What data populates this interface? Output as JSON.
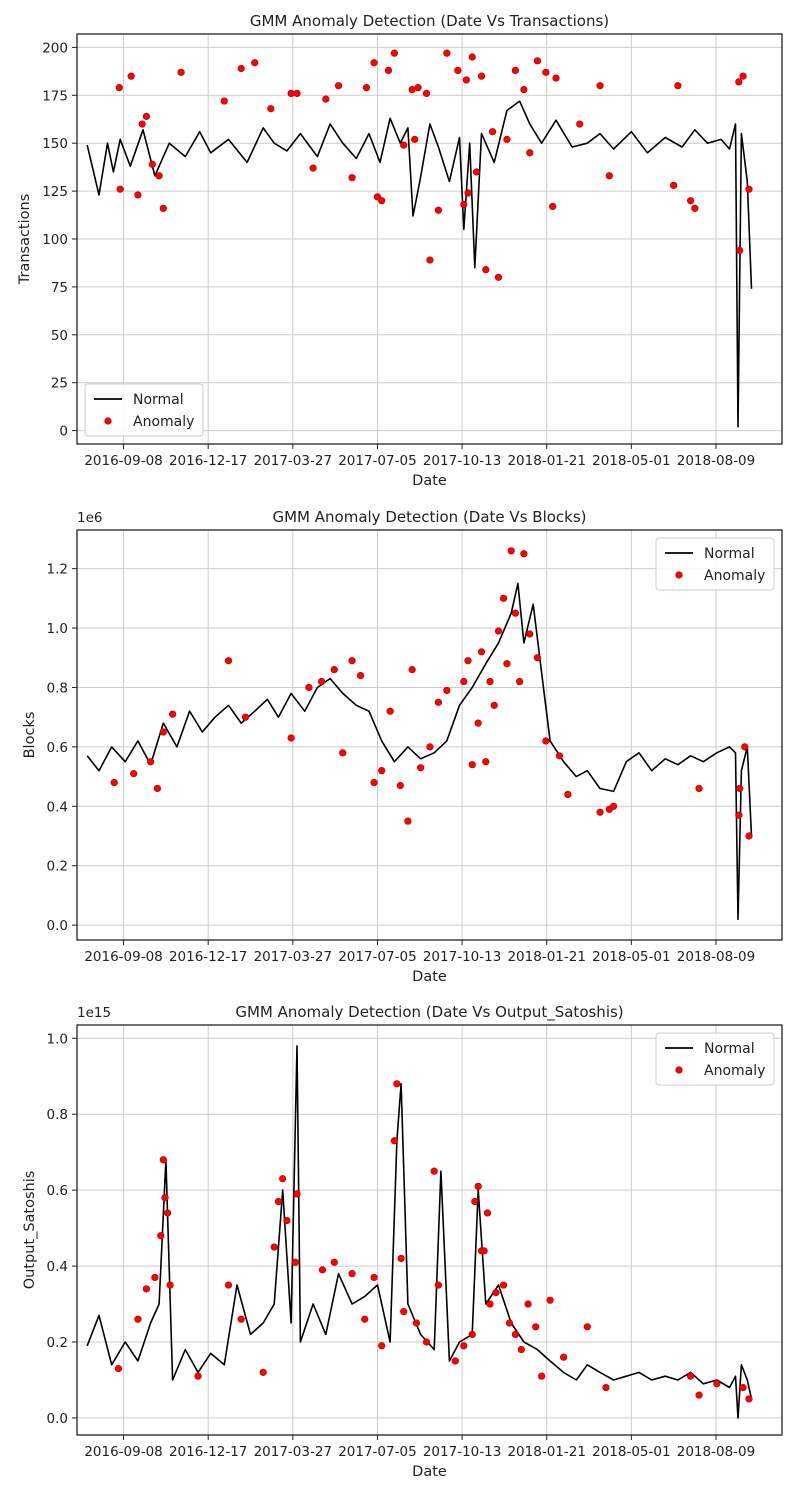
{
  "chart_data": [
    {
      "type": "line",
      "title": "GMM Anomaly Detection (Date Vs Transactions)",
      "xlabel": "Date",
      "ylabel": "Transactions",
      "offset_label": "",
      "x_ticks": [
        "2016-09-08",
        "2016-12-17",
        "2017-03-27",
        "2017-07-05",
        "2017-10-13",
        "2018-01-21",
        "2018-05-01",
        "2018-08-09"
      ],
      "y_ticks": [
        "0",
        "25",
        "50",
        "75",
        "100",
        "125",
        "150",
        "175",
        "200"
      ],
      "y_tick_values": [
        0,
        25,
        50,
        75,
        100,
        125,
        150,
        175,
        200
      ],
      "xlim": [
        "2016-07-15",
        "2018-10-26"
      ],
      "ylim": [
        -7,
        207
      ],
      "grid": true,
      "legend_position": "lower-left",
      "legend": {
        "normal": "Normal",
        "anomaly": "Anomaly"
      },
      "series": [
        {
          "name": "Normal",
          "style": "line",
          "color": "#000000",
          "x": [
            "2016-07-27",
            "2016-08-10",
            "2016-08-20",
            "2016-08-27",
            "2016-09-04",
            "2016-09-16",
            "2016-10-01",
            "2016-10-15",
            "2016-11-01",
            "2016-11-20",
            "2016-12-07",
            "2016-12-20",
            "2017-01-10",
            "2017-02-01",
            "2017-02-20",
            "2017-03-05",
            "2017-03-20",
            "2017-04-05",
            "2017-04-25",
            "2017-05-10",
            "2017-05-25",
            "2017-06-10",
            "2017-06-25",
            "2017-07-08",
            "2017-07-20",
            "2017-08-01",
            "2017-08-10",
            "2017-08-16",
            "2017-08-24",
            "2017-09-05",
            "2017-09-15",
            "2017-09-28",
            "2017-10-10",
            "2017-10-15",
            "2017-10-22",
            "2017-10-28",
            "2017-11-05",
            "2017-11-20",
            "2017-12-05",
            "2017-12-20",
            "2018-01-01",
            "2018-01-15",
            "2018-02-01",
            "2018-02-20",
            "2018-03-10",
            "2018-03-25",
            "2018-04-10",
            "2018-05-01",
            "2018-05-20",
            "2018-06-10",
            "2018-06-30",
            "2018-07-15",
            "2018-07-30",
            "2018-08-15",
            "2018-08-25",
            "2018-09-01",
            "2018-09-04",
            "2018-09-08",
            "2018-09-15",
            "2018-09-20"
          ],
          "values": [
            149,
            123,
            150,
            135,
            152,
            138,
            157,
            133,
            150,
            143,
            156,
            145,
            152,
            140,
            158,
            150,
            146,
            155,
            143,
            160,
            150,
            142,
            155,
            140,
            163,
            150,
            158,
            112,
            130,
            160,
            148,
            130,
            153,
            105,
            150,
            85,
            155,
            140,
            167,
            172,
            160,
            150,
            162,
            148,
            150,
            155,
            147,
            156,
            145,
            153,
            148,
            157,
            150,
            152,
            147,
            160,
            2,
            155,
            130,
            74
          ]
        },
        {
          "name": "Anomaly",
          "style": "scatter",
          "color": "#ff0000",
          "x": [
            "2016-09-03",
            "2016-09-04",
            "2016-09-17",
            "2016-09-25",
            "2016-09-30",
            "2016-10-05",
            "2016-10-12",
            "2016-10-20",
            "2016-10-25",
            "2016-11-15",
            "2017-01-05",
            "2017-01-25",
            "2017-02-10",
            "2017-03-01",
            "2017-03-25",
            "2017-04-01",
            "2017-04-20",
            "2017-05-05",
            "2017-05-20",
            "2017-06-05",
            "2017-06-22",
            "2017-07-01",
            "2017-07-05",
            "2017-07-10",
            "2017-07-18",
            "2017-07-25",
            "2017-08-05",
            "2017-08-15",
            "2017-08-18",
            "2017-08-22",
            "2017-09-01",
            "2017-09-05",
            "2017-09-15",
            "2017-09-25",
            "2017-10-08",
            "2017-10-15",
            "2017-10-18",
            "2017-10-20",
            "2017-10-25",
            "2017-10-30",
            "2017-11-05",
            "2017-11-10",
            "2017-11-18",
            "2017-11-25",
            "2017-12-05",
            "2017-12-15",
            "2017-12-25",
            "2018-01-01",
            "2018-01-10",
            "2018-01-20",
            "2018-01-28",
            "2018-02-01",
            "2018-03-01",
            "2018-03-25",
            "2018-04-05",
            "2018-06-20",
            "2018-06-25",
            "2018-07-10",
            "2018-07-15",
            "2018-09-05",
            "2018-09-06",
            "2018-09-10",
            "2018-09-17"
          ],
          "values": [
            179,
            126,
            185,
            123,
            160,
            164,
            139,
            133,
            116,
            187,
            172,
            189,
            192,
            168,
            176,
            176,
            137,
            173,
            180,
            132,
            179,
            192,
            122,
            120,
            188,
            197,
            149,
            178,
            152,
            179,
            176,
            89,
            115,
            197,
            188,
            118,
            183,
            124,
            195,
            135,
            185,
            84,
            156,
            80,
            152,
            188,
            178,
            145,
            193,
            187,
            117,
            184,
            160,
            180,
            133,
            128,
            180,
            120,
            116,
            182,
            94,
            185,
            126
          ]
        }
      ]
    },
    {
      "type": "line",
      "title": "GMM Anomaly Detection (Date Vs Blocks)",
      "xlabel": "Date",
      "ylabel": "Blocks",
      "offset_label": "1e6",
      "x_ticks": [
        "2016-09-08",
        "2016-12-17",
        "2017-03-27",
        "2017-07-05",
        "2017-10-13",
        "2018-01-21",
        "2018-05-01",
        "2018-08-09"
      ],
      "y_ticks": [
        "0.0",
        "0.2",
        "0.4",
        "0.6",
        "0.8",
        "1.0",
        "1.2"
      ],
      "y_tick_values": [
        0.0,
        0.2,
        0.4,
        0.6,
        0.8,
        1.0,
        1.2
      ],
      "xlim": [
        "2016-07-15",
        "2018-10-26"
      ],
      "ylim": [
        -0.05,
        1.33
      ],
      "grid": true,
      "legend_position": "top-right",
      "legend": {
        "normal": "Normal",
        "anomaly": "Anomaly"
      },
      "series": [
        {
          "name": "Normal",
          "style": "line",
          "color": "#000000",
          "x": [
            "2016-07-27",
            "2016-08-10",
            "2016-08-25",
            "2016-09-10",
            "2016-09-25",
            "2016-10-10",
            "2016-10-25",
            "2016-11-10",
            "2016-11-25",
            "2016-12-10",
            "2016-12-25",
            "2017-01-10",
            "2017-01-25",
            "2017-02-10",
            "2017-02-25",
            "2017-03-10",
            "2017-03-25",
            "2017-04-10",
            "2017-04-25",
            "2017-05-10",
            "2017-05-25",
            "2017-06-10",
            "2017-06-25",
            "2017-07-10",
            "2017-07-25",
            "2017-08-10",
            "2017-08-25",
            "2017-09-10",
            "2017-09-25",
            "2017-10-10",
            "2017-10-25",
            "2017-11-10",
            "2017-11-25",
            "2017-12-10",
            "2017-12-18",
            "2017-12-25",
            "2018-01-05",
            "2018-01-15",
            "2018-01-25",
            "2018-02-10",
            "2018-02-25",
            "2018-03-10",
            "2018-03-25",
            "2018-04-10",
            "2018-04-25",
            "2018-05-10",
            "2018-05-25",
            "2018-06-10",
            "2018-06-25",
            "2018-07-10",
            "2018-07-25",
            "2018-08-10",
            "2018-08-25",
            "2018-09-01",
            "2018-09-04",
            "2018-09-08",
            "2018-09-15",
            "2018-09-20"
          ],
          "values": [
            0.57,
            0.52,
            0.6,
            0.55,
            0.62,
            0.54,
            0.68,
            0.6,
            0.72,
            0.65,
            0.7,
            0.74,
            0.68,
            0.72,
            0.76,
            0.7,
            0.78,
            0.72,
            0.8,
            0.83,
            0.78,
            0.74,
            0.72,
            0.62,
            0.55,
            0.6,
            0.56,
            0.58,
            0.62,
            0.74,
            0.8,
            0.88,
            0.95,
            1.05,
            1.15,
            0.95,
            1.08,
            0.85,
            0.62,
            0.55,
            0.5,
            0.52,
            0.46,
            0.45,
            0.55,
            0.58,
            0.52,
            0.56,
            0.54,
            0.57,
            0.55,
            0.58,
            0.6,
            0.58,
            0.02,
            0.52,
            0.6,
            0.3
          ]
        },
        {
          "name": "Anomaly",
          "style": "scatter",
          "color": "#ff0000",
          "x": [
            "2016-08-28",
            "2016-09-20",
            "2016-10-10",
            "2016-10-18",
            "2016-10-25",
            "2016-11-05",
            "2017-01-10",
            "2017-01-30",
            "2017-03-25",
            "2017-04-15",
            "2017-04-30",
            "2017-05-15",
            "2017-05-25",
            "2017-06-05",
            "2017-06-15",
            "2017-07-01",
            "2017-07-10",
            "2017-07-20",
            "2017-08-01",
            "2017-08-10",
            "2017-08-15",
            "2017-08-25",
            "2017-09-05",
            "2017-09-15",
            "2017-09-25",
            "2017-10-15",
            "2017-10-20",
            "2017-10-25",
            "2017-11-01",
            "2017-11-05",
            "2017-11-10",
            "2017-11-15",
            "2017-11-20",
            "2017-11-25",
            "2017-12-01",
            "2017-12-05",
            "2017-12-10",
            "2017-12-15",
            "2017-12-20",
            "2017-12-25",
            "2018-01-01",
            "2018-01-10",
            "2018-01-20",
            "2018-02-05",
            "2018-02-15",
            "2018-03-25",
            "2018-04-05",
            "2018-04-10",
            "2018-07-20",
            "2018-09-05",
            "2018-09-06",
            "2018-09-12",
            "2018-09-17"
          ],
          "values": [
            0.48,
            0.51,
            0.55,
            0.46,
            0.65,
            0.71,
            0.89,
            0.7,
            0.63,
            0.8,
            0.82,
            0.86,
            0.58,
            0.89,
            0.84,
            0.48,
            0.52,
            0.72,
            0.47,
            0.35,
            0.86,
            0.53,
            0.6,
            0.75,
            0.79,
            0.82,
            0.89,
            0.54,
            0.68,
            0.92,
            0.55,
            0.82,
            0.74,
            0.99,
            1.1,
            0.88,
            1.26,
            1.05,
            0.82,
            1.25,
            0.98,
            0.9,
            0.62,
            0.57,
            0.44,
            0.38,
            0.39,
            0.4,
            0.46,
            0.37,
            0.46,
            0.6,
            0.3
          ]
        }
      ]
    },
    {
      "type": "line",
      "title": "GMM Anomaly Detection (Date Vs Output_Satoshis)",
      "xlabel": "Date",
      "ylabel": "Output_Satoshis",
      "offset_label": "1e15",
      "x_ticks": [
        "2016-09-08",
        "2016-12-17",
        "2017-03-27",
        "2017-07-05",
        "2017-10-13",
        "2018-01-21",
        "2018-05-01",
        "2018-08-09"
      ],
      "y_ticks": [
        "0.0",
        "0.2",
        "0.4",
        "0.6",
        "0.8",
        "1.0"
      ],
      "y_tick_values": [
        0.0,
        0.2,
        0.4,
        0.6,
        0.8,
        1.0
      ],
      "xlim": [
        "2016-07-15",
        "2018-10-26"
      ],
      "ylim": [
        -0.045,
        1.035
      ],
      "grid": true,
      "legend_position": "top-right",
      "legend": {
        "normal": "Normal",
        "anomaly": "Anomaly"
      },
      "series": [
        {
          "name": "Normal",
          "style": "line",
          "color": "#000000",
          "x": [
            "2016-07-27",
            "2016-08-10",
            "2016-08-25",
            "2016-09-10",
            "2016-09-25",
            "2016-10-10",
            "2016-10-20",
            "2016-10-28",
            "2016-11-05",
            "2016-11-20",
            "2016-12-05",
            "2016-12-20",
            "2017-01-05",
            "2017-01-20",
            "2017-02-05",
            "2017-02-20",
            "2017-03-05",
            "2017-03-15",
            "2017-03-25",
            "2017-04-01",
            "2017-04-05",
            "2017-04-20",
            "2017-05-05",
            "2017-05-20",
            "2017-06-05",
            "2017-06-20",
            "2017-07-05",
            "2017-07-20",
            "2017-07-28",
            "2017-08-02",
            "2017-08-10",
            "2017-08-25",
            "2017-09-10",
            "2017-09-18",
            "2017-09-28",
            "2017-10-10",
            "2017-10-25",
            "2017-11-01",
            "2017-11-10",
            "2017-11-25",
            "2017-12-10",
            "2017-12-25",
            "2018-01-10",
            "2018-01-25",
            "2018-02-10",
            "2018-02-25",
            "2018-03-10",
            "2018-03-25",
            "2018-04-10",
            "2018-04-25",
            "2018-05-10",
            "2018-05-25",
            "2018-06-10",
            "2018-06-25",
            "2018-07-10",
            "2018-07-25",
            "2018-08-10",
            "2018-08-25",
            "2018-09-01",
            "2018-09-04",
            "2018-09-08",
            "2018-09-15",
            "2018-09-20"
          ],
          "values": [
            0.19,
            0.27,
            0.14,
            0.2,
            0.15,
            0.25,
            0.3,
            0.68,
            0.1,
            0.18,
            0.12,
            0.17,
            0.14,
            0.35,
            0.22,
            0.25,
            0.3,
            0.6,
            0.25,
            0.98,
            0.2,
            0.3,
            0.22,
            0.38,
            0.3,
            0.32,
            0.35,
            0.2,
            0.73,
            0.88,
            0.3,
            0.22,
            0.18,
            0.65,
            0.15,
            0.2,
            0.22,
            0.6,
            0.3,
            0.35,
            0.25,
            0.2,
            0.18,
            0.15,
            0.12,
            0.1,
            0.14,
            0.12,
            0.1,
            0.11,
            0.12,
            0.1,
            0.11,
            0.1,
            0.12,
            0.09,
            0.1,
            0.08,
            0.11,
            0.0,
            0.14,
            0.1,
            0.05
          ]
        },
        {
          "name": "Anomaly",
          "style": "scatter",
          "color": "#ff0000",
          "x": [
            "2016-09-02",
            "2016-09-25",
            "2016-10-05",
            "2016-10-15",
            "2016-10-22",
            "2016-10-25",
            "2016-10-27",
            "2016-10-30",
            "2016-11-02",
            "2016-12-05",
            "2017-01-10",
            "2017-01-25",
            "2017-02-20",
            "2017-03-05",
            "2017-03-10",
            "2017-03-15",
            "2017-03-20",
            "2017-03-30",
            "2017-04-01",
            "2017-05-01",
            "2017-05-15",
            "2017-06-05",
            "2017-06-20",
            "2017-07-01",
            "2017-07-10",
            "2017-07-25",
            "2017-07-28",
            "2017-08-02",
            "2017-08-05",
            "2017-08-20",
            "2017-09-01",
            "2017-09-10",
            "2017-09-15",
            "2017-10-05",
            "2017-10-15",
            "2017-10-25",
            "2017-10-28",
            "2017-11-01",
            "2017-11-05",
            "2017-11-08",
            "2017-11-12",
            "2017-11-15",
            "2017-11-22",
            "2017-12-01",
            "2017-12-08",
            "2017-12-15",
            "2017-12-22",
            "2017-12-30",
            "2018-01-08",
            "2018-01-15",
            "2018-01-25",
            "2018-02-10",
            "2018-03-10",
            "2018-04-01",
            "2018-07-10",
            "2018-07-20",
            "2018-08-10",
            "2018-09-10",
            "2018-09-17"
          ],
          "values": [
            0.13,
            0.26,
            0.34,
            0.37,
            0.48,
            0.68,
            0.58,
            0.54,
            0.35,
            0.11,
            0.35,
            0.26,
            0.12,
            0.45,
            0.57,
            0.63,
            0.52,
            0.41,
            0.59,
            0.39,
            0.41,
            0.38,
            0.26,
            0.37,
            0.19,
            0.73,
            0.88,
            0.42,
            0.28,
            0.25,
            0.2,
            0.65,
            0.35,
            0.15,
            0.19,
            0.22,
            0.57,
            0.61,
            0.44,
            0.44,
            0.54,
            0.3,
            0.33,
            0.35,
            0.25,
            0.22,
            0.18,
            0.3,
            0.24,
            0.11,
            0.31,
            0.16,
            0.24,
            0.08,
            0.11,
            0.06,
            0.09,
            0.08,
            0.05
          ]
        }
      ]
    }
  ]
}
